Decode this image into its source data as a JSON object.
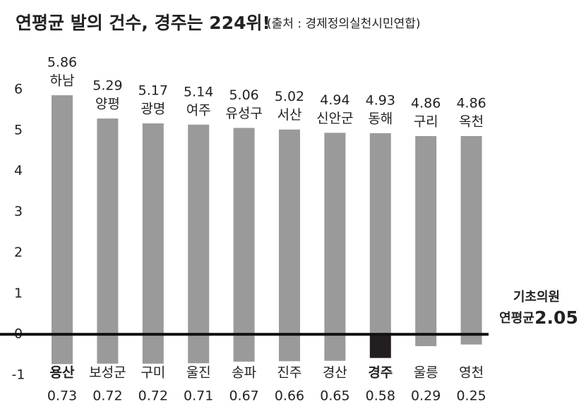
{
  "chart_data": {
    "type": "bar",
    "title": "연평균 발의 건수, 경주는 224위!",
    "source": "(출처 : 경제정의실천시민연합)",
    "ylim": [
      -1,
      6
    ],
    "yticks": [
      -1,
      0,
      1,
      2,
      3,
      4,
      5,
      6
    ],
    "series": [
      {
        "color": "#9a9a9a",
        "labels": [
          "하남",
          "양평",
          "광명",
          "여주",
          "유성구",
          "서산",
          "신안군",
          "동해",
          "구리",
          "옥천"
        ],
        "values": [
          5.86,
          5.29,
          5.17,
          5.14,
          5.06,
          5.02,
          4.94,
          4.93,
          4.86,
          4.86
        ]
      },
      {
        "color": "#9a9a9a",
        "highlight_color": "#231f20",
        "highlight": [
          7
        ],
        "bold_labels": [
          0,
          7
        ],
        "labels": [
          "용산",
          "보성군",
          "구미",
          "울진",
          "송파",
          "진주",
          "경산",
          "경주",
          "울릉",
          "영천"
        ],
        "values": [
          -0.73,
          -0.72,
          -0.72,
          -0.71,
          -0.67,
          -0.66,
          -0.65,
          -0.58,
          -0.29,
          -0.25
        ],
        "value_labels": [
          "0.73",
          "0.72",
          "0.72",
          "0.71",
          "0.67",
          "0.66",
          "0.65",
          "0.58",
          "0.29",
          "0.25"
        ]
      }
    ],
    "annotation": {
      "lines": [
        "기초의원",
        "연평균"
      ],
      "value": 2.05
    }
  }
}
